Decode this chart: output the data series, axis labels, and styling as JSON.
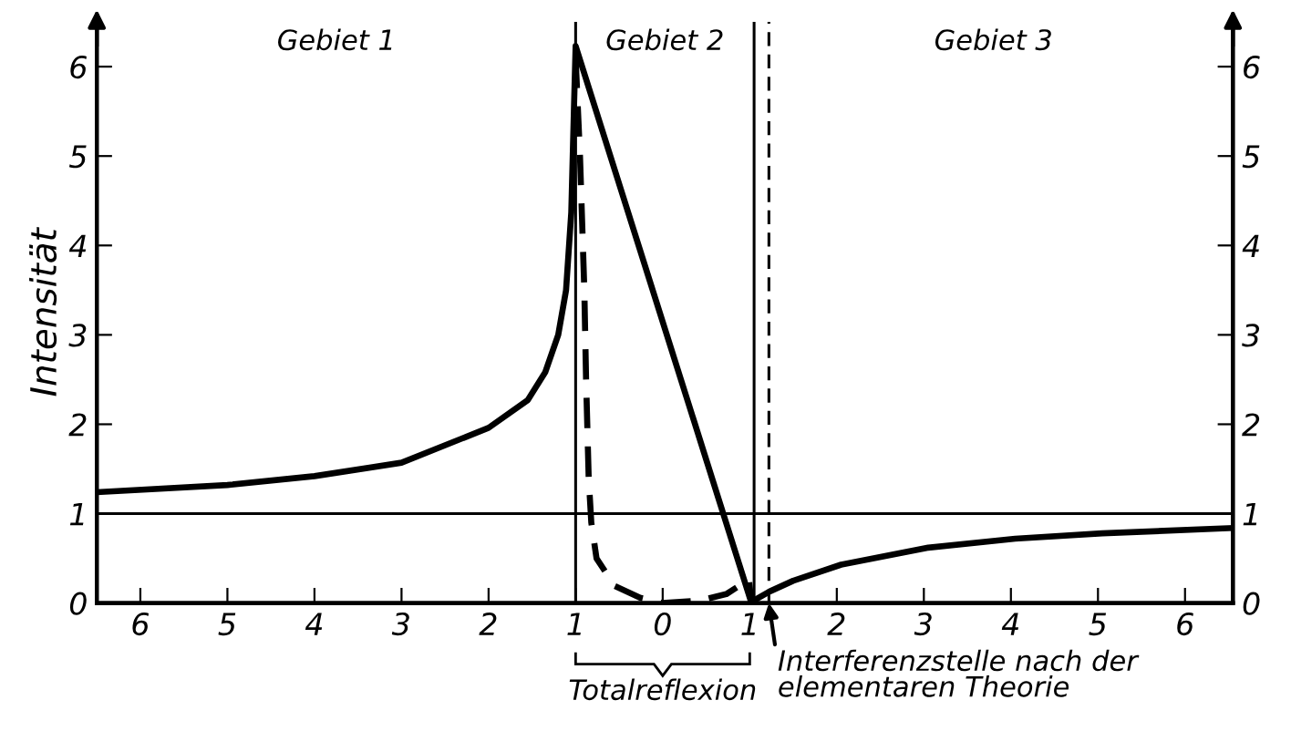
{
  "chart_data": {
    "type": "line",
    "ylabel": "Intensität",
    "xlim": [
      -6.5,
      6.55
    ],
    "ylim": [
      0,
      6.5
    ],
    "xticks": [
      {
        "value": -6,
        "label": "6"
      },
      {
        "value": -5,
        "label": "5"
      },
      {
        "value": -4,
        "label": "4"
      },
      {
        "value": -3,
        "label": "3"
      },
      {
        "value": -2,
        "label": "2"
      },
      {
        "value": -1,
        "label": "1"
      },
      0,
      1,
      2,
      3,
      4,
      5,
      6
    ],
    "yticks": [
      0,
      1,
      2,
      3,
      4,
      5,
      6
    ],
    "y2lim": [
      0,
      6.5
    ],
    "y2ticks": [
      0,
      1,
      2,
      3,
      4,
      5,
      6
    ],
    "grid": false,
    "legend": false,
    "marker": "none",
    "series": [
      {
        "color": "#000000",
        "line_style": "solid",
        "x": [
          -6.5,
          -5.0,
          -4.0,
          -3.0,
          -2.0,
          -1.55,
          -1.35,
          -1.2,
          -1.11,
          -1.05,
          -1.02,
          -1.0,
          1.02,
          1.05,
          1.23,
          1.5,
          2.05,
          3.05,
          4.05,
          5.05,
          6.55
        ],
        "values": [
          1.24,
          1.32,
          1.42,
          1.57,
          1.96,
          2.27,
          2.58,
          3.0,
          3.5,
          4.37,
          5.5,
          6.23,
          0.0,
          0.03,
          0.13,
          0.25,
          0.43,
          0.62,
          0.72,
          0.78,
          0.84
        ]
      },
      {
        "color": "#000000",
        "line_style": "dashed",
        "x": [
          -1.0,
          -0.95,
          -0.9,
          -0.88,
          -0.85,
          -0.82,
          -0.76,
          -0.55,
          -0.26,
          0.0,
          0.44,
          0.73,
          0.89,
          0.99,
          1.02
        ],
        "values": [
          6.1,
          5.0,
          3.5,
          2.5,
          1.4,
          0.9,
          0.5,
          0.19,
          0.06,
          0.0,
          0.03,
          0.1,
          0.2,
          0.27,
          0.0
        ]
      }
    ],
    "ref_lines": [
      {
        "axis": "y",
        "value": 1,
        "color": "#000000",
        "line_style": "solid"
      },
      {
        "axis": "x",
        "value": -1,
        "color": "#000000",
        "line_style": "solid"
      },
      {
        "axis": "x",
        "value": 1.05,
        "color": "#000000",
        "line_style": "solid"
      },
      {
        "axis": "x",
        "value": 1.22,
        "color": "#000000",
        "line_style": "dashed"
      }
    ],
    "annotations": [
      "Gebiet 1",
      "Gebiet 2",
      "Gebiet 3",
      "Totalreflexion",
      {
        "text": "Interferenzstelle nach der\nelementaren Theorie",
        "x": 1.22,
        "y": 0
      }
    ]
  }
}
